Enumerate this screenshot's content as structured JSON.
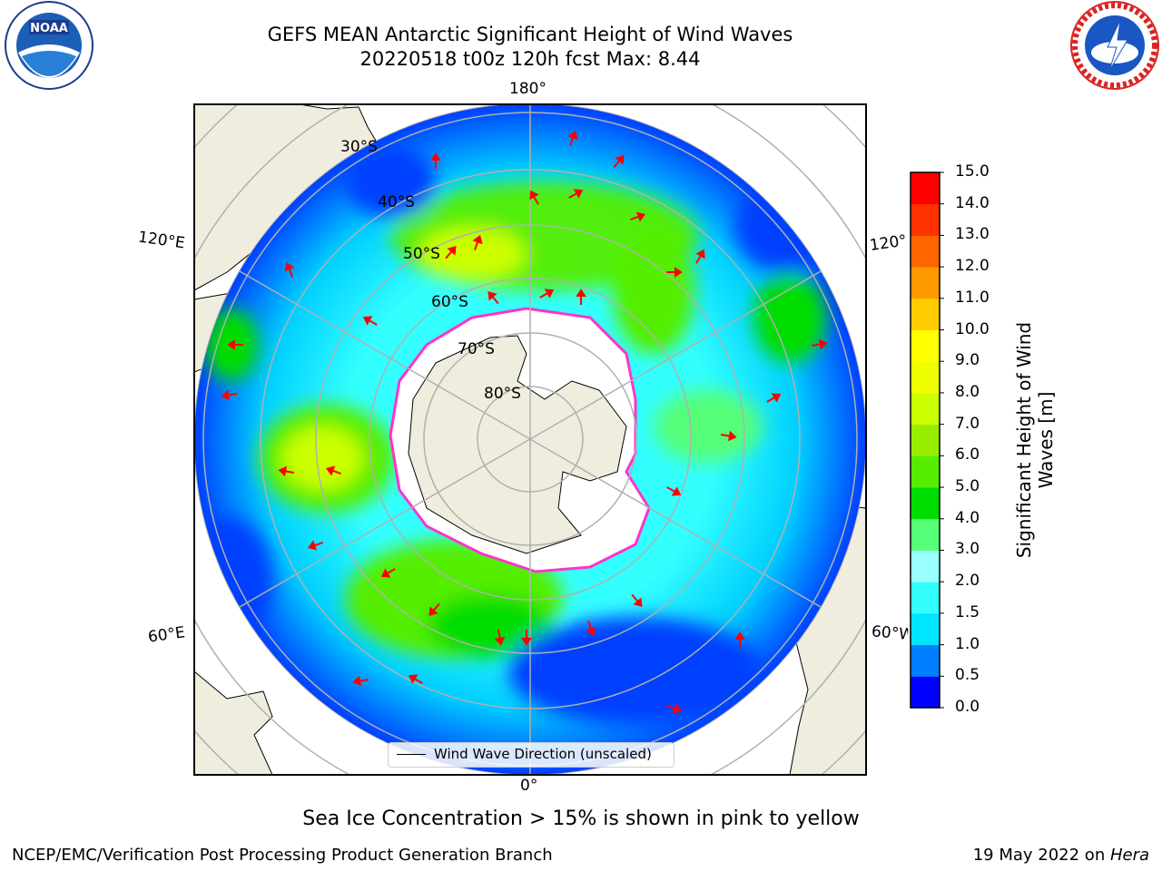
{
  "title_line1": "GEFS MEAN Antarctic Significant Height of Wind Waves",
  "title_line2": "20220518 t00z 120h fcst   Max: 8.44",
  "logos": {
    "left": "noaa-logo",
    "right": "national-weather-service-logo"
  },
  "lon_labels": {
    "top": "180°",
    "bottom": "0°",
    "upper_left": "120°E",
    "upper_right": "120°",
    "lower_left": "60°E",
    "lower_right": "60°W"
  },
  "lat_labels": [
    "30°S",
    "40°S",
    "50°S",
    "60°S",
    "70°S",
    "80°S"
  ],
  "legend_label": "Wind Wave Direction (unscaled)",
  "colorbar": {
    "title": "Significant Height of Wind Waves [m]",
    "ticks": [
      "15.0",
      "14.0",
      "13.0",
      "12.0",
      "11.0",
      "10.0",
      "9.0",
      "8.0",
      "7.0",
      "6.0",
      "5.0",
      "4.0",
      "3.0",
      "2.0",
      "1.5",
      "1.0",
      "0.5",
      "0.0"
    ],
    "colors": [
      "#0000ff",
      "#0080ff",
      "#00e5ff",
      "#33ffff",
      "#99ffff",
      "#55ff77",
      "#00dd00",
      "#55ee00",
      "#99ee00",
      "#ccff00",
      "#eeff00",
      "#ffff00",
      "#ffcc00",
      "#ff9900",
      "#ff6600",
      "#ff3300",
      "#ff0000"
    ]
  },
  "colors": {
    "land": "#efedde",
    "ice": "#ffffff",
    "ice_edge": "#ff33cc",
    "arrows": "#ff0000",
    "grid": "#b0b0b0"
  },
  "note": "Sea Ice Concentration > 15% is shown in pink to yellow",
  "footer_left": "NCEP/EMC/Verification Post Processing Product Generation Branch",
  "footer_right_date": "19 May 2022 on ",
  "footer_right_machine": "Hera"
}
